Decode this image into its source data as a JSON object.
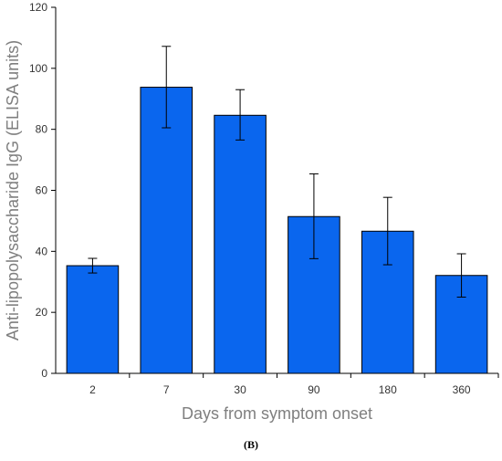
{
  "chart_data": {
    "type": "bar",
    "categories": [
      "2",
      "7",
      "30",
      "90",
      "180",
      "360"
    ],
    "values": [
      35.3,
      93.8,
      84.6,
      51.4,
      46.6,
      32.1
    ],
    "error_upper": [
      37.7,
      107.2,
      93.0,
      65.4,
      57.7,
      39.2
    ],
    "error_lower": [
      32.9,
      80.5,
      76.5,
      37.6,
      35.6,
      25.0
    ],
    "xlabel": "Days from symptom onset",
    "ylabel": "Anti-lipopolysaccharide IgG (ELISA units)",
    "ylim": [
      0,
      120
    ],
    "yticks": [
      "0",
      "20",
      "40",
      "60",
      "80",
      "100",
      "120"
    ],
    "bar_color": "#0a66ee",
    "grid": false,
    "legend": "none"
  },
  "panel_label": "(B)"
}
